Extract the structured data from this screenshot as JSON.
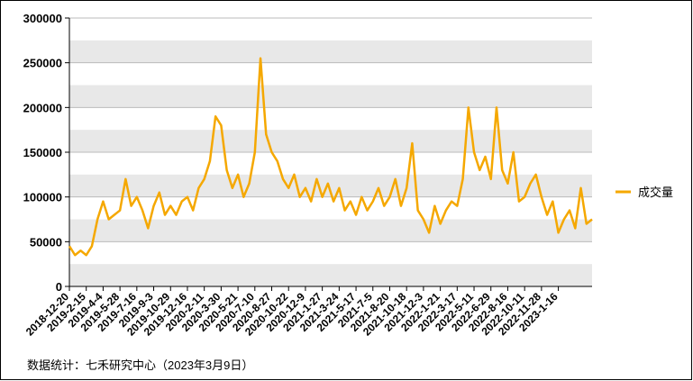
{
  "chart_data": {
    "type": "line",
    "categories": [
      "2018-12-20",
      null,
      null,
      "2019-2-15",
      null,
      null,
      "2019-4-4",
      null,
      null,
      "2019-5-28",
      null,
      null,
      "2019-7-16",
      null,
      null,
      "2019-9-3",
      null,
      null,
      "2019-10-29",
      null,
      null,
      "2019-12-16",
      null,
      null,
      "2020-2-11",
      null,
      null,
      "2020-3-30",
      null,
      null,
      "2020-5-21",
      null,
      null,
      "2020-7-10",
      null,
      null,
      "2020-8-27",
      null,
      null,
      "2020-10-22",
      null,
      null,
      "2020-12-9",
      null,
      null,
      "2021-1-27",
      null,
      null,
      "2021-3-24",
      null,
      null,
      "2021-5-17",
      null,
      null,
      "2021-7-5",
      null,
      null,
      "2021-8-20",
      null,
      null,
      "2021-10-18",
      null,
      null,
      "2021-12-3",
      null,
      null,
      "2022-1-21",
      null,
      null,
      "2022-3-17",
      null,
      null,
      "2022-5-11",
      null,
      null,
      "2022-6-29",
      null,
      null,
      "2022-8-16",
      null,
      null,
      "2022-10-11",
      null,
      null,
      "2022-11-28",
      null,
      null,
      "2023-1-16",
      null,
      null,
      null,
      null,
      null,
      null
    ],
    "series": [
      {
        "name": "成交量",
        "color": "#f5a800",
        "values": [
          45000,
          35000,
          40000,
          35000,
          45000,
          75000,
          95000,
          75000,
          80000,
          85000,
          120000,
          90000,
          100000,
          85000,
          65000,
          90000,
          105000,
          80000,
          90000,
          80000,
          95000,
          100000,
          85000,
          110000,
          120000,
          140000,
          190000,
          180000,
          130000,
          110000,
          125000,
          100000,
          115000,
          150000,
          255000,
          170000,
          150000,
          140000,
          120000,
          110000,
          125000,
          100000,
          110000,
          95000,
          120000,
          100000,
          115000,
          95000,
          110000,
          85000,
          95000,
          80000,
          100000,
          85000,
          95000,
          110000,
          90000,
          100000,
          120000,
          90000,
          110000,
          160000,
          85000,
          75000,
          60000,
          90000,
          70000,
          85000,
          95000,
          90000,
          120000,
          200000,
          150000,
          130000,
          145000,
          120000,
          200000,
          130000,
          115000,
          150000,
          95000,
          100000,
          115000,
          125000,
          100000,
          80000,
          95000,
          60000,
          75000,
          85000,
          65000,
          110000,
          70000,
          75000
        ]
      }
    ],
    "ylim": [
      0,
      300000
    ],
    "yticks": [
      0,
      50000,
      100000,
      150000,
      200000,
      250000,
      300000
    ],
    "grid": true,
    "legend": "right",
    "footnote": "数据统计：七禾研究中心（2023年3月9日）"
  }
}
